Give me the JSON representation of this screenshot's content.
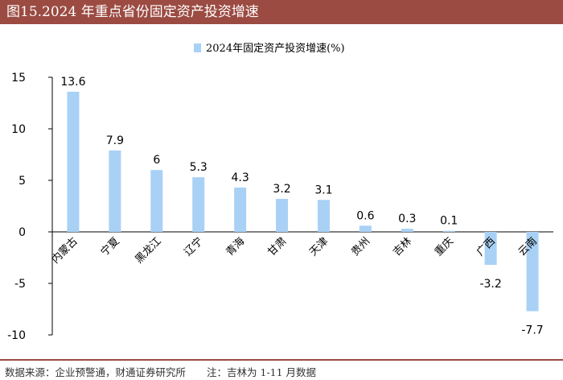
{
  "figure_title": "图15.2024 年重点省份固定资产投资增速",
  "source_text": "数据来源：企业预警通，财通证券研究所",
  "note_text": "注：吉林为 1-11 月数据",
  "colors": {
    "bar": "#a9d1f5",
    "header": "#9b4b42",
    "axis": "#000000"
  },
  "chart_data": {
    "type": "bar",
    "title": "",
    "xlabel": "",
    "ylabel": "",
    "ylim": [
      -10,
      15
    ],
    "yticks": [
      15,
      10,
      5,
      0,
      -5,
      -10
    ],
    "grid": false,
    "legend_position": "top-center",
    "categories": [
      "内蒙古",
      "宁夏",
      "黑龙江",
      "辽宁",
      "青海",
      "甘肃",
      "天津",
      "贵州",
      "吉林",
      "重庆",
      "广西",
      "云南"
    ],
    "series": [
      {
        "name": "2024年固定资产投资增速(%)",
        "values": [
          13.6,
          7.9,
          6,
          5.3,
          4.3,
          3.2,
          3.1,
          0.6,
          0.3,
          0.1,
          -3.2,
          -7.7
        ],
        "labels": [
          "13.6",
          "7.9",
          "6",
          "5.3",
          "4.3",
          "3.2",
          "3.1",
          "0.6",
          "0.3",
          "0.1",
          "-3.2",
          "-7.7"
        ]
      }
    ]
  }
}
